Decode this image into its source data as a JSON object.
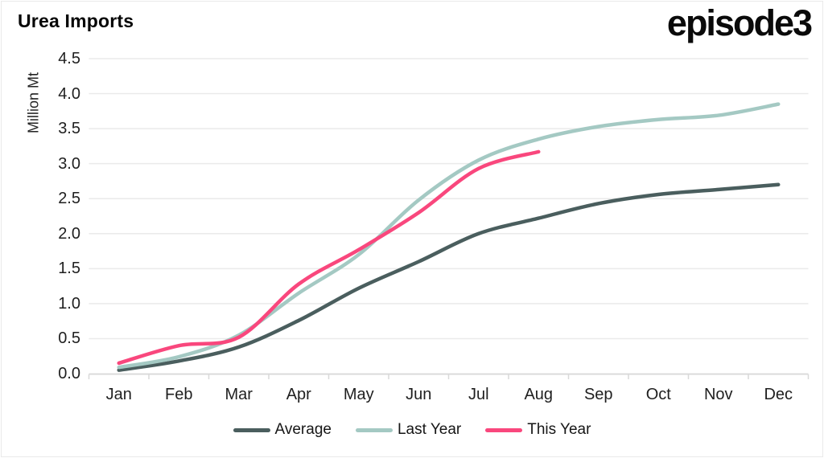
{
  "header": {
    "title": "Urea Imports",
    "logo": "episode3"
  },
  "chart_data": {
    "type": "line",
    "title": "Urea Imports",
    "xlabel": "",
    "ylabel": "Million Mt",
    "ylim": [
      0,
      4.5
    ],
    "ytick_step": 0.5,
    "ytick_labels": [
      "0.0",
      "0.5",
      "1.0",
      "1.5",
      "2.0",
      "2.5",
      "3.0",
      "3.5",
      "4.0",
      "4.5"
    ],
    "grid": "horizontal",
    "legend_position": "bottom-center",
    "categories": [
      "Jan",
      "Feb",
      "Mar",
      "Apr",
      "May",
      "Jun",
      "Jul",
      "Aug",
      "Sep",
      "Oct",
      "Nov",
      "Dec"
    ],
    "series": [
      {
        "name": "Average",
        "color": "#4a5e5e",
        "values": [
          0.05,
          0.18,
          0.38,
          0.76,
          1.22,
          1.6,
          2.0,
          2.22,
          2.43,
          2.56,
          2.63,
          2.7
        ]
      },
      {
        "name": "Last Year",
        "color": "#a4c9c3",
        "values": [
          0.09,
          0.24,
          0.55,
          1.15,
          1.7,
          2.48,
          3.05,
          3.35,
          3.53,
          3.63,
          3.69,
          3.85
        ]
      },
      {
        "name": "This Year",
        "color": "#f9477d",
        "values": [
          0.15,
          0.4,
          0.52,
          1.28,
          1.77,
          2.3,
          2.93,
          3.17
        ]
      }
    ],
    "axis_colors": {
      "gridline": "#eaeaea",
      "axisline": "#d9d9d9"
    }
  }
}
